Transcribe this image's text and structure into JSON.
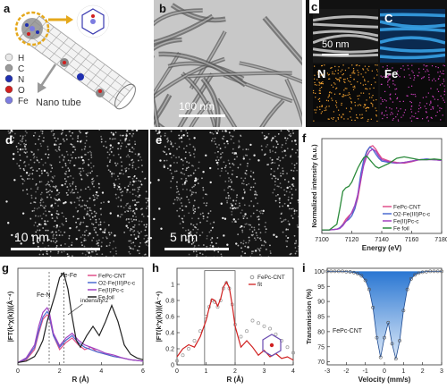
{
  "panel_labels": [
    "a",
    "b",
    "c",
    "d",
    "e",
    "f",
    "g",
    "h",
    "i"
  ],
  "panel_a": {
    "legend": [
      {
        "symbol": "H",
        "color": "#e8e8e8"
      },
      {
        "symbol": "C",
        "color": "#9a9a9a"
      },
      {
        "symbol": "N",
        "color": "#1f2fb0"
      },
      {
        "symbol": "O",
        "color": "#d11f1f"
      },
      {
        "symbol": "Fe",
        "color": "#7c7ce0"
      }
    ],
    "nanotube_label": "Nano tube"
  },
  "panel_b": {
    "scale": "100 nm"
  },
  "panel_c": {
    "scale": "50 nm",
    "maps": [
      "C",
      "N",
      "Fe"
    ]
  },
  "panel_d": {
    "scale": "10 nm"
  },
  "panel_e": {
    "scale": "5 nm"
  },
  "chart_data": [
    {
      "id": "f",
      "type": "line",
      "xlabel": "Energy (eV)",
      "ylabel": "Normalized intensity (a.u.)",
      "xlim": [
        7100,
        7180
      ],
      "xticks": [
        7100,
        7120,
        7140,
        7160,
        7180
      ],
      "legend_position": "lower-right",
      "series": [
        {
          "name": "FePc-CNT",
          "color": "#e0508a",
          "x": [
            7100,
            7105,
            7110,
            7112,
            7114,
            7116,
            7118,
            7120,
            7122,
            7124,
            7126,
            7128,
            7130,
            7132,
            7134,
            7136,
            7138,
            7140,
            7145,
            7150,
            7155,
            7160,
            7165,
            7170,
            7175,
            7180
          ],
          "y": [
            0.0,
            0.0,
            0.01,
            0.03,
            0.08,
            0.15,
            0.2,
            0.24,
            0.3,
            0.45,
            0.7,
            0.95,
            1.1,
            1.18,
            1.2,
            1.15,
            1.08,
            1.02,
            0.98,
            0.96,
            0.95,
            0.97,
            1.0,
            1.01,
            1.0,
            0.99
          ]
        },
        {
          "name": "O2-Fe(III)Pc-c",
          "color": "#4a6ad0",
          "x": [
            7100,
            7105,
            7110,
            7112,
            7114,
            7116,
            7118,
            7120,
            7122,
            7124,
            7126,
            7128,
            7130,
            7132,
            7134,
            7136,
            7138,
            7140,
            7145,
            7150,
            7155,
            7160,
            7165,
            7170,
            7175,
            7180
          ],
          "y": [
            0.0,
            0.0,
            0.01,
            0.03,
            0.07,
            0.12,
            0.15,
            0.2,
            0.3,
            0.5,
            0.8,
            1.0,
            1.12,
            1.18,
            1.15,
            1.08,
            1.02,
            0.98,
            0.96,
            0.95,
            0.96,
            0.98,
            1.0,
            1.01,
            1.0,
            0.99
          ]
        },
        {
          "name": "Fe(II)Pc-c",
          "color": "#a040c0",
          "x": [
            7100,
            7105,
            7110,
            7112,
            7114,
            7116,
            7118,
            7120,
            7122,
            7124,
            7126,
            7128,
            7130,
            7132,
            7134,
            7136,
            7138,
            7140,
            7145,
            7150,
            7155,
            7160,
            7165,
            7170,
            7175,
            7180
          ],
          "y": [
            0.0,
            0.0,
            0.01,
            0.02,
            0.06,
            0.12,
            0.18,
            0.25,
            0.35,
            0.5,
            0.72,
            0.92,
            1.05,
            1.12,
            1.15,
            1.12,
            1.05,
            1.0,
            0.97,
            0.95,
            0.96,
            0.98,
            1.0,
            1.0,
            1.0,
            0.99
          ]
        },
        {
          "name": "Fe foil",
          "color": "#2a8a3a",
          "x": [
            7100,
            7105,
            7110,
            7112,
            7114,
            7116,
            7118,
            7120,
            7122,
            7124,
            7126,
            7128,
            7130,
            7132,
            7134,
            7136,
            7138,
            7140,
            7145,
            7150,
            7155,
            7160,
            7165,
            7170,
            7175,
            7180
          ],
          "y": [
            0.0,
            0.0,
            0.08,
            0.3,
            0.55,
            0.6,
            0.62,
            0.68,
            0.78,
            0.88,
            0.96,
            1.03,
            1.05,
            1.0,
            0.95,
            0.9,
            0.88,
            0.9,
            0.95,
            1.02,
            1.04,
            1.02,
            1.0,
            1.0,
            1.01,
            1.0
          ]
        }
      ]
    },
    {
      "id": "g",
      "type": "line",
      "xlabel": "R (Å)",
      "ylabel": "|FT(k³χ(k))|(Å⁻⁴)",
      "xlim": [
        0,
        6
      ],
      "xticks": [
        0,
        2,
        4,
        6
      ],
      "legend_position": "top-right",
      "annotations": [
        "Fe-Fe",
        "Fe-N",
        "indensity/2"
      ],
      "series": [
        {
          "name": "FePc-CNT",
          "color": "#e0508a",
          "x": [
            0,
            0.4,
            0.8,
            1.0,
            1.2,
            1.4,
            1.5,
            1.7,
            2.0,
            2.3,
            2.6,
            2.9,
            3.2,
            3.5,
            3.8,
            4.2,
            4.6,
            5.0,
            5.4,
            6.0
          ],
          "y": [
            0.02,
            0.08,
            0.3,
            0.65,
            0.95,
            1.05,
            1.0,
            0.6,
            0.3,
            0.45,
            0.55,
            0.4,
            0.3,
            0.35,
            0.25,
            0.2,
            0.15,
            0.12,
            0.08,
            0.05
          ]
        },
        {
          "name": "O2-Fe(III)Pc-c",
          "color": "#4a6ad0",
          "x": [
            0,
            0.4,
            0.8,
            1.0,
            1.2,
            1.4,
            1.5,
            1.7,
            2.0,
            2.3,
            2.6,
            2.9,
            3.2,
            3.5,
            3.8,
            4.2,
            4.6,
            5.0,
            5.4,
            6.0
          ],
          "y": [
            0.02,
            0.1,
            0.35,
            0.7,
            1.0,
            1.12,
            1.05,
            0.6,
            0.35,
            0.5,
            0.6,
            0.45,
            0.35,
            0.3,
            0.25,
            0.2,
            0.15,
            0.12,
            0.08,
            0.05
          ]
        },
        {
          "name": "Fe(II)Pc-c",
          "color": "#a040c0",
          "x": [
            0,
            0.4,
            0.8,
            1.0,
            1.2,
            1.4,
            1.5,
            1.7,
            2.0,
            2.3,
            2.6,
            2.9,
            3.2,
            3.5,
            3.8,
            4.2,
            4.6,
            5.0,
            5.4,
            6.0
          ],
          "y": [
            0.02,
            0.12,
            0.4,
            0.8,
            1.1,
            1.2,
            1.12,
            0.65,
            0.38,
            0.55,
            0.65,
            0.5,
            0.4,
            0.35,
            0.3,
            0.22,
            0.18,
            0.12,
            0.08,
            0.05
          ]
        },
        {
          "name": "Fe foil",
          "color": "#222222",
          "x": [
            0,
            0.4,
            0.8,
            1.0,
            1.2,
            1.4,
            1.6,
            1.8,
            2.0,
            2.2,
            2.4,
            2.6,
            2.8,
            3.0,
            3.3,
            3.6,
            3.9,
            4.2,
            4.5,
            4.8,
            5.1,
            5.4,
            5.7,
            6.0
          ],
          "y": [
            0.02,
            0.05,
            0.15,
            0.3,
            0.5,
            0.9,
            1.2,
            1.5,
            1.85,
            1.95,
            1.6,
            1.0,
            0.5,
            0.35,
            0.6,
            0.8,
            0.6,
            0.9,
            1.25,
            0.9,
            0.4,
            0.2,
            0.12,
            0.08
          ]
        }
      ]
    },
    {
      "id": "h",
      "type": "line",
      "xlabel": "R (Å)",
      "ylabel": "|FT(k³χ(k))|(Å⁻⁴)",
      "xlim": [
        0,
        4
      ],
      "ylim": [
        0,
        1.2
      ],
      "xticks": [
        0,
        1,
        2,
        3,
        4
      ],
      "yticks": [
        0.0,
        0.2,
        0.4,
        0.6,
        0.8,
        1.0
      ],
      "legend_position": "top-right",
      "series": [
        {
          "name": "FePc-CNT",
          "style": "open-circles",
          "color": "#999999",
          "x": [
            0,
            0.2,
            0.4,
            0.6,
            0.8,
            1.0,
            1.1,
            1.2,
            1.3,
            1.4,
            1.5,
            1.6,
            1.7,
            1.8,
            1.9,
            2.0,
            2.2,
            2.4,
            2.6,
            2.8,
            3.0,
            3.2,
            3.4,
            3.6,
            3.8,
            4.0
          ],
          "y": [
            0.05,
            0.12,
            0.2,
            0.3,
            0.42,
            0.6,
            0.72,
            0.8,
            0.78,
            0.72,
            0.8,
            0.95,
            1.02,
            0.95,
            0.75,
            0.5,
            0.35,
            0.42,
            0.55,
            0.52,
            0.48,
            0.45,
            0.38,
            0.3,
            0.22,
            0.15
          ]
        },
        {
          "name": "fit",
          "style": "line",
          "color": "#d02020",
          "x": [
            0,
            0.2,
            0.4,
            0.6,
            0.8,
            1.0,
            1.1,
            1.2,
            1.3,
            1.4,
            1.5,
            1.6,
            1.7,
            1.8,
            1.9,
            2.0,
            2.2,
            2.4,
            2.6,
            2.8,
            3.0,
            3.2,
            3.4,
            3.6,
            3.8,
            4.0
          ],
          "y": [
            0.1,
            0.2,
            0.25,
            0.22,
            0.35,
            0.55,
            0.7,
            0.82,
            0.8,
            0.73,
            0.82,
            0.97,
            1.03,
            0.96,
            0.74,
            0.48,
            0.22,
            0.3,
            0.22,
            0.12,
            0.18,
            0.1,
            0.14,
            0.08,
            0.1,
            0.06
          ]
        }
      ]
    },
    {
      "id": "i",
      "type": "scatter",
      "xlabel": "Velocity (mm/s)",
      "ylabel": "Transmission (%)",
      "xlim": [
        -3,
        3
      ],
      "ylim": [
        69,
        101
      ],
      "xticks": [
        -3,
        -2,
        -1,
        0,
        1,
        2,
        3
      ],
      "yticks": [
        70,
        75,
        80,
        85,
        90,
        95,
        100
      ],
      "annotation": "FePc-CNT",
      "series": [
        {
          "name": "data",
          "color": "#555555",
          "x": [
            -3.0,
            -2.8,
            -2.6,
            -2.4,
            -2.2,
            -2.0,
            -1.8,
            -1.6,
            -1.4,
            -1.2,
            -1.0,
            -0.8,
            -0.6,
            -0.4,
            -0.2,
            0.0,
            0.2,
            0.4,
            0.6,
            0.8,
            1.0,
            1.2,
            1.4,
            1.6,
            1.8,
            2.0,
            2.2,
            2.4,
            2.6,
            2.8,
            3.0
          ],
          "y": [
            100,
            100,
            100,
            100,
            100,
            99.9,
            99.8,
            99.6,
            99.2,
            98.5,
            97,
            94,
            88,
            78,
            71.5,
            78,
            83,
            76,
            71,
            77,
            87,
            94,
            97.5,
            98.8,
            99.4,
            99.7,
            99.9,
            100,
            100,
            100,
            100
          ]
        }
      ]
    }
  ]
}
